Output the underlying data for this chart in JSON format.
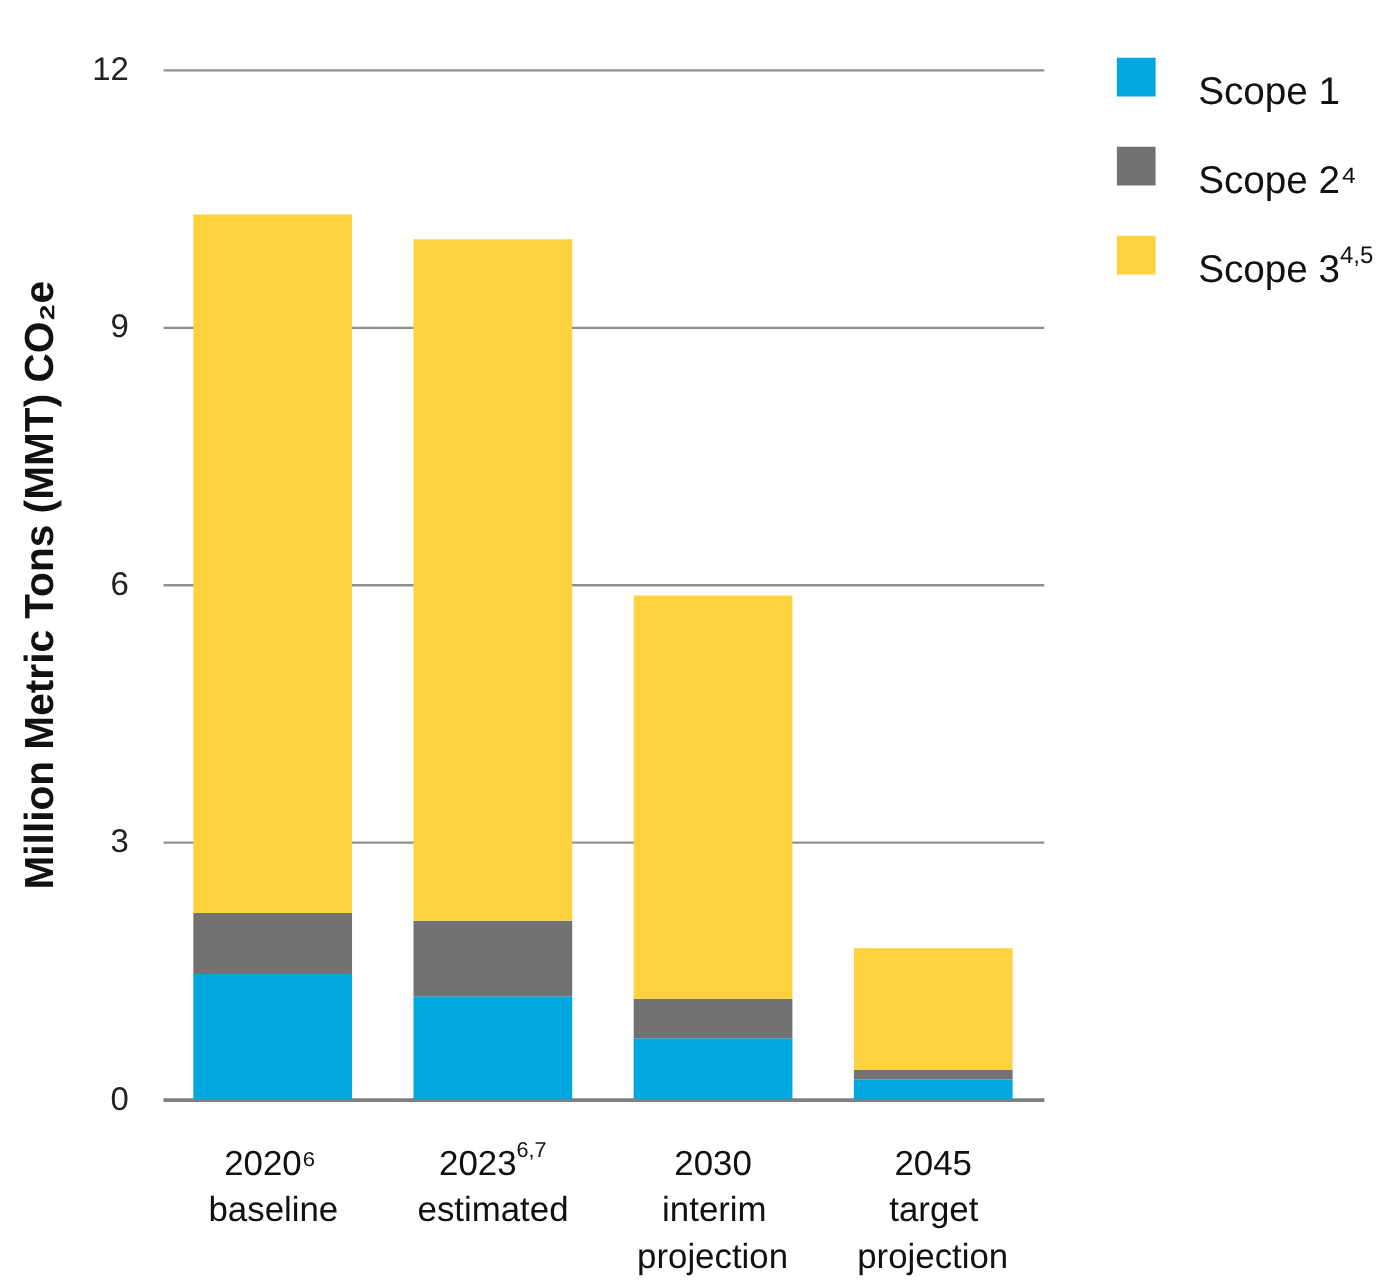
{
  "chart_data": {
    "type": "bar",
    "stacked": true,
    "ylabel": "Million Metric Tons (MMT) CO₂e",
    "categories": [
      "2020⁶\nbaseline",
      "2023$^{6,7}$\nestimated",
      "2030\ninterim\nprojection",
      "2045\ntarget\nprojection"
    ],
    "series": [
      {
        "name": "Scope 1",
        "color": "#00a7e1",
        "values": [
          1.46,
          1.2,
          0.71,
          0.23
        ]
      },
      {
        "name": "Scope 2⁴",
        "color": "#717271",
        "values": [
          0.71,
          0.88,
          0.46,
          0.11
        ]
      },
      {
        "name": "Scope 3$^{4,5}$",
        "color": "#fdd23e",
        "values": [
          8.14,
          7.94,
          4.7,
          1.42
        ]
      }
    ],
    "ylim": [
      0,
      12
    ],
    "yticks": [
      0,
      3,
      6,
      9,
      12
    ],
    "grid": "y",
    "legend": "top right"
  }
}
